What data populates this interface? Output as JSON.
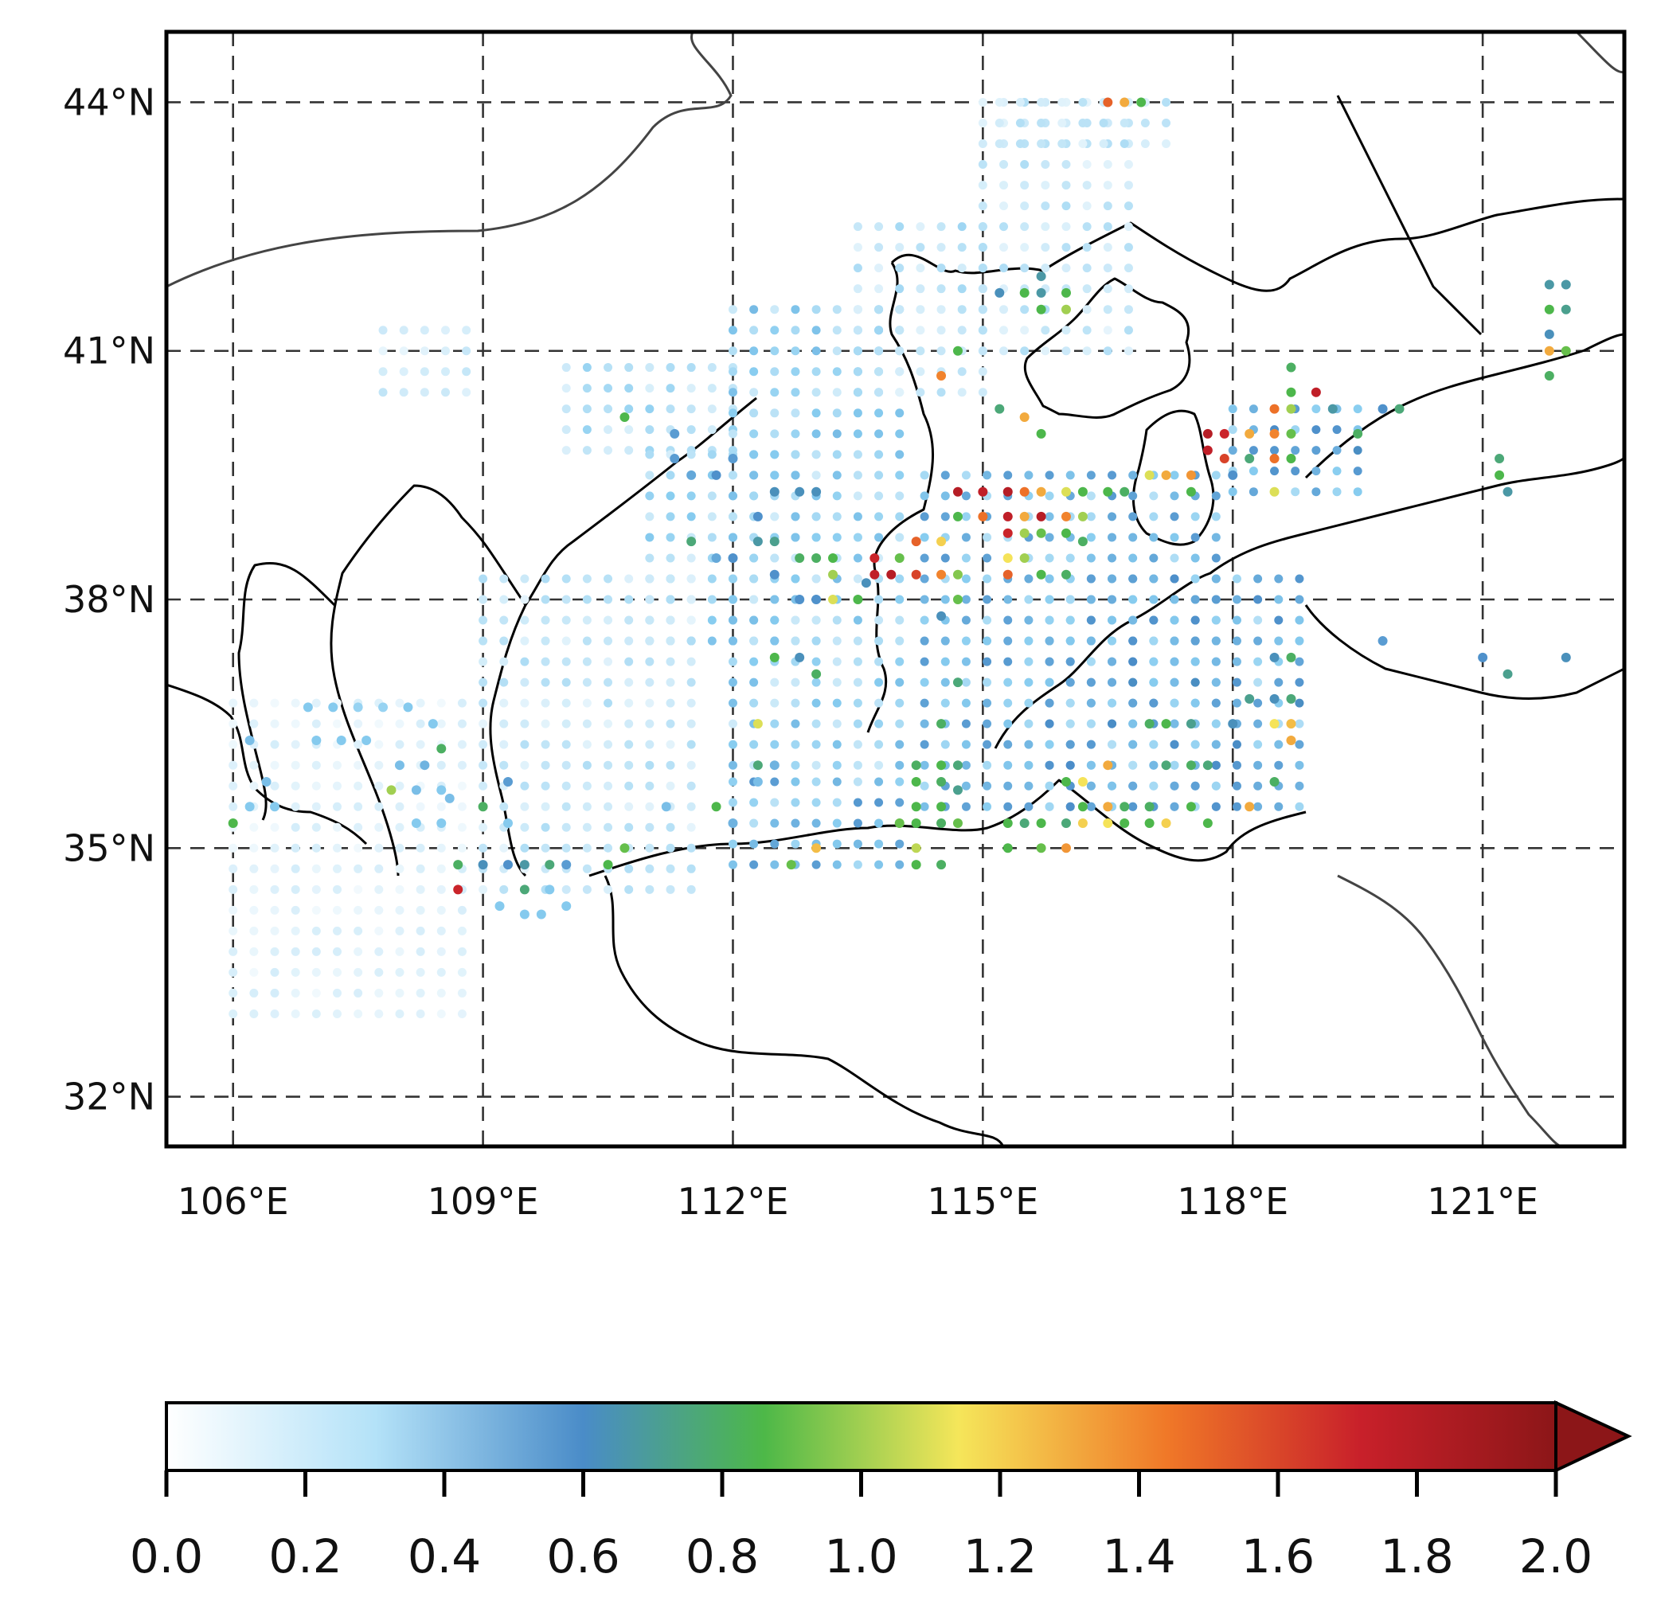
{
  "map": {
    "lon_range": [
      105.2,
      122.7
    ],
    "lat_range": [
      31.4,
      44.85
    ],
    "x_ticks": [
      {
        "value": 106,
        "label": "106°E"
      },
      {
        "value": 109,
        "label": "109°E"
      },
      {
        "value": 112,
        "label": "112°E"
      },
      {
        "value": 115,
        "label": "115°E"
      },
      {
        "value": 118,
        "label": "118°E"
      },
      {
        "value": 121,
        "label": "121°E"
      }
    ],
    "y_ticks": [
      {
        "value": 44,
        "label": "44°N"
      },
      {
        "value": 41,
        "label": "41°N"
      },
      {
        "value": 38,
        "label": "38°N"
      },
      {
        "value": 35,
        "label": "35°N"
      },
      {
        "value": 32,
        "label": "32°N"
      }
    ],
    "gridlines": true,
    "grid_style": "dashed"
  },
  "colorbar": {
    "min": 0.0,
    "max": 2.0,
    "extend": "max",
    "colors": [
      "#ffffff",
      "#88cdf0",
      "#4a8cc8",
      "#4db848",
      "#f5e65a",
      "#f07828",
      "#c8202a",
      "#8c1618"
    ],
    "ticks": [
      "0.0",
      "0.2",
      "0.4",
      "0.6",
      "0.8",
      "1.0",
      "1.2",
      "1.4",
      "1.6",
      "1.8",
      "2.0"
    ]
  },
  "chart_data": {
    "type": "scatter",
    "x_label": "",
    "y_label": "",
    "note_units": "",
    "grid_step_deg": 0.25,
    "points": [
      [
        106.9,
        36.7,
        0.3
      ],
      [
        107.2,
        36.7,
        0.3
      ],
      [
        107.5,
        36.7,
        0.25
      ],
      [
        107.8,
        36.7,
        0.25
      ],
      [
        108.1,
        36.7,
        0.3
      ],
      [
        108.4,
        36.5,
        0.3
      ],
      [
        106.2,
        36.3,
        0.35
      ],
      [
        106.4,
        35.8,
        0.35
      ],
      [
        106.2,
        35.5,
        0.3
      ],
      [
        106.5,
        35.5,
        0.3
      ],
      [
        106.0,
        35.3,
        0.85
      ],
      [
        107.0,
        36.3,
        0.3
      ],
      [
        107.3,
        36.3,
        0.3
      ],
      [
        107.6,
        36.3,
        0.3
      ],
      [
        108.0,
        36.0,
        0.35
      ],
      [
        108.3,
        36.0,
        0.4
      ],
      [
        108.5,
        36.2,
        0.8
      ],
      [
        107.9,
        35.7,
        1.0
      ],
      [
        108.2,
        35.7,
        0.35
      ],
      [
        108.5,
        35.7,
        0.3
      ],
      [
        108.2,
        35.3,
        0.3
      ],
      [
        108.5,
        35.3,
        0.3
      ],
      [
        108.7,
        34.8,
        0.8
      ],
      [
        108.7,
        34.5,
        1.7
      ],
      [
        109.0,
        34.8,
        0.6
      ],
      [
        109.3,
        34.8,
        0.55
      ],
      [
        109.5,
        34.8,
        0.65
      ],
      [
        109.8,
        34.8,
        0.75
      ],
      [
        110.0,
        34.8,
        0.5
      ],
      [
        110.5,
        34.8,
        0.85
      ],
      [
        109.5,
        34.5,
        0.75
      ],
      [
        109.8,
        34.5,
        0.3
      ],
      [
        109.2,
        34.3,
        0.3
      ],
      [
        109.5,
        34.2,
        0.3
      ],
      [
        109.7,
        34.2,
        0.3
      ],
      [
        110.0,
        34.3,
        0.3
      ],
      [
        110.7,
        35.0,
        0.9
      ],
      [
        108.6,
        35.6,
        0.35
      ],
      [
        109.0,
        35.5,
        0.8
      ],
      [
        109.3,
        35.3,
        0.3
      ],
      [
        109.3,
        35.8,
        0.5
      ],
      [
        110.7,
        40.2,
        0.85
      ],
      [
        111.3,
        40.0,
        0.5
      ],
      [
        111.3,
        39.7,
        0.5
      ],
      [
        111.5,
        39.5,
        0.45
      ],
      [
        111.8,
        39.5,
        0.55
      ],
      [
        112.0,
        39.7,
        0.5
      ],
      [
        111.5,
        38.7,
        0.75
      ],
      [
        111.8,
        38.5,
        0.45
      ],
      [
        112.0,
        38.5,
        0.55
      ],
      [
        112.3,
        39.0,
        0.55
      ],
      [
        112.5,
        39.3,
        0.6
      ],
      [
        112.8,
        39.3,
        0.6
      ],
      [
        113.0,
        39.3,
        0.6
      ],
      [
        112.3,
        38.7,
        0.65
      ],
      [
        112.5,
        38.7,
        0.7
      ],
      [
        112.8,
        38.5,
        0.8
      ],
      [
        113.0,
        38.5,
        0.8
      ],
      [
        113.2,
        38.3,
        1.0
      ],
      [
        113.2,
        38.5,
        0.85
      ],
      [
        112.5,
        38.3,
        0.55
      ],
      [
        112.8,
        38.0,
        0.55
      ],
      [
        113.0,
        38.0,
        0.55
      ],
      [
        113.2,
        38.0,
        1.1
      ],
      [
        113.5,
        38.0,
        0.85
      ],
      [
        112.5,
        37.3,
        0.85
      ],
      [
        112.8,
        37.3,
        0.6
      ],
      [
        113.0,
        37.1,
        0.8
      ],
      [
        112.3,
        36.5,
        1.1
      ],
      [
        112.3,
        36.0,
        0.75
      ],
      [
        112.5,
        36.0,
        0.4
      ],
      [
        111.8,
        35.5,
        0.85
      ],
      [
        111.2,
        35.5,
        0.35
      ],
      [
        112.3,
        35.8,
        0.35
      ],
      [
        112.0,
        35.3,
        0.4
      ],
      [
        113.7,
        38.5,
        1.7
      ],
      [
        113.7,
        38.3,
        1.75
      ],
      [
        113.9,
        38.3,
        1.8
      ],
      [
        113.6,
        38.2,
        0.6
      ],
      [
        114.0,
        38.5,
        0.9
      ],
      [
        114.2,
        38.7,
        1.5
      ],
      [
        114.2,
        38.3,
        1.6
      ],
      [
        114.5,
        38.7,
        1.2
      ],
      [
        114.5,
        38.3,
        1.4
      ],
      [
        114.7,
        38.3,
        0.95
      ],
      [
        114.7,
        38.0,
        0.9
      ],
      [
        114.5,
        37.8,
        0.6
      ],
      [
        114.7,
        39.3,
        1.8
      ],
      [
        115.0,
        39.3,
        1.75
      ],
      [
        115.3,
        39.3,
        1.8
      ],
      [
        115.5,
        39.3,
        1.45
      ],
      [
        115.7,
        39.3,
        1.3
      ],
      [
        116.0,
        39.3,
        1.1
      ],
      [
        116.2,
        39.3,
        0.85
      ],
      [
        116.5,
        39.3,
        0.85
      ],
      [
        116.7,
        39.3,
        0.8
      ],
      [
        114.7,
        39.0,
        0.85
      ],
      [
        115.0,
        39.0,
        1.45
      ],
      [
        115.3,
        39.0,
        1.75
      ],
      [
        115.5,
        39.0,
        1.3
      ],
      [
        115.7,
        39.0,
        1.8
      ],
      [
        116.0,
        39.0,
        1.4
      ],
      [
        116.2,
        39.0,
        1.0
      ],
      [
        115.3,
        38.8,
        1.7
      ],
      [
        115.5,
        38.8,
        1.0
      ],
      [
        115.7,
        38.8,
        0.9
      ],
      [
        116.0,
        38.8,
        0.85
      ],
      [
        116.2,
        38.7,
        0.8
      ],
      [
        115.3,
        38.5,
        1.15
      ],
      [
        115.5,
        38.5,
        1.0
      ],
      [
        115.3,
        38.3,
        1.5
      ],
      [
        115.7,
        38.3,
        0.85
      ],
      [
        116.0,
        38.3,
        0.8
      ],
      [
        114.7,
        37.0,
        0.75
      ],
      [
        114.5,
        36.5,
        0.8
      ],
      [
        114.2,
        36.0,
        0.8
      ],
      [
        114.5,
        36.0,
        0.85
      ],
      [
        114.7,
        36.0,
        0.75
      ],
      [
        114.2,
        35.8,
        0.85
      ],
      [
        114.5,
        35.8,
        0.8
      ],
      [
        114.7,
        35.7,
        0.7
      ],
      [
        114.2,
        35.5,
        0.85
      ],
      [
        114.5,
        35.5,
        0.85
      ],
      [
        114.0,
        35.3,
        0.9
      ],
      [
        114.2,
        35.3,
        0.85
      ],
      [
        114.5,
        35.3,
        0.8
      ],
      [
        114.7,
        35.3,
        0.9
      ],
      [
        114.2,
        35.0,
        1.05
      ],
      [
        113.0,
        35.0,
        1.25
      ],
      [
        114.2,
        34.8,
        0.85
      ],
      [
        114.5,
        34.8,
        0.8
      ],
      [
        112.7,
        34.8,
        0.9
      ],
      [
        115.3,
        35.0,
        0.85
      ],
      [
        115.7,
        35.0,
        0.9
      ],
      [
        116.0,
        35.0,
        1.35
      ],
      [
        115.3,
        35.3,
        0.85
      ],
      [
        115.5,
        35.3,
        0.75
      ],
      [
        115.7,
        35.3,
        0.85
      ],
      [
        116.0,
        35.3,
        0.75
      ],
      [
        116.2,
        35.3,
        1.2
      ],
      [
        116.5,
        35.3,
        1.15
      ],
      [
        116.7,
        35.3,
        0.85
      ],
      [
        117.0,
        35.3,
        0.85
      ],
      [
        117.2,
        35.3,
        1.2
      ],
      [
        117.7,
        35.3,
        0.85
      ],
      [
        116.2,
        35.5,
        0.85
      ],
      [
        116.5,
        35.5,
        1.3
      ],
      [
        116.7,
        35.5,
        0.8
      ],
      [
        117.0,
        35.5,
        0.8
      ],
      [
        117.5,
        35.5,
        0.85
      ],
      [
        118.2,
        35.5,
        1.3
      ],
      [
        116.2,
        35.8,
        1.15
      ],
      [
        116.0,
        35.8,
        0.85
      ],
      [
        116.5,
        36.0,
        1.3
      ],
      [
        117.2,
        36.0,
        0.75
      ],
      [
        117.5,
        36.0,
        0.8
      ],
      [
        117.7,
        36.0,
        0.75
      ],
      [
        118.5,
        35.8,
        0.8
      ],
      [
        117.0,
        36.5,
        0.8
      ],
      [
        117.2,
        36.5,
        0.85
      ],
      [
        117.5,
        36.5,
        0.7
      ],
      [
        118.0,
        36.5,
        0.6
      ],
      [
        118.5,
        36.5,
        1.15
      ],
      [
        118.7,
        36.3,
        1.3
      ],
      [
        118.7,
        36.5,
        1.25
      ],
      [
        118.2,
        36.8,
        0.7
      ],
      [
        118.5,
        36.8,
        0.6
      ],
      [
        118.7,
        36.8,
        0.75
      ],
      [
        118.7,
        37.3,
        0.8
      ],
      [
        118.5,
        37.3,
        0.6
      ],
      [
        114.5,
        40.7,
        1.4
      ],
      [
        114.7,
        41.0,
        0.85
      ],
      [
        115.2,
        40.3,
        0.75
      ],
      [
        115.5,
        40.2,
        1.3
      ],
      [
        115.7,
        40.0,
        0.85
      ],
      [
        115.2,
        41.7,
        0.6
      ],
      [
        115.5,
        41.7,
        0.85
      ],
      [
        115.7,
        41.7,
        0.65
      ],
      [
        115.7,
        41.5,
        0.85
      ],
      [
        116.0,
        41.7,
        0.85
      ],
      [
        116.0,
        41.5,
        1.0
      ],
      [
        115.7,
        41.9,
        0.65
      ],
      [
        116.5,
        44.0,
        1.5
      ],
      [
        116.7,
        44.0,
        1.3
      ],
      [
        116.9,
        44.0,
        0.85
      ],
      [
        117.2,
        39.5,
        1.3
      ],
      [
        117.5,
        39.5,
        1.35
      ],
      [
        117.0,
        39.5,
        1.1
      ],
      [
        117.5,
        39.3,
        0.85
      ],
      [
        117.7,
        39.8,
        1.75
      ],
      [
        117.9,
        39.7,
        1.6
      ],
      [
        117.7,
        40.0,
        1.8
      ],
      [
        117.9,
        40.0,
        1.7
      ],
      [
        118.2,
        40.0,
        1.3
      ],
      [
        118.5,
        40.0,
        1.4
      ],
      [
        118.7,
        40.0,
        0.9
      ],
      [
        118.2,
        39.7,
        0.75
      ],
      [
        118.5,
        39.7,
        1.45
      ],
      [
        118.7,
        39.7,
        0.85
      ],
      [
        118.0,
        39.5,
        0.55
      ],
      [
        118.5,
        40.3,
        1.45
      ],
      [
        118.7,
        40.3,
        1.0
      ],
      [
        118.7,
        40.5,
        0.85
      ],
      [
        119.0,
        40.5,
        1.75
      ],
      [
        118.7,
        40.8,
        0.8
      ],
      [
        118.5,
        39.3,
        1.1
      ],
      [
        119.2,
        40.3,
        0.65
      ],
      [
        119.5,
        40.0,
        0.8
      ],
      [
        119.8,
        40.3,
        0.55
      ],
      [
        120.0,
        40.3,
        0.75
      ],
      [
        121.8,
        41.5,
        0.85
      ],
      [
        122.0,
        41.5,
        0.7
      ],
      [
        121.8,
        41.2,
        0.6
      ],
      [
        122.0,
        41.0,
        0.9
      ],
      [
        121.8,
        41.0,
        1.3
      ],
      [
        121.8,
        40.7,
        0.8
      ],
      [
        122.0,
        41.8,
        0.65
      ],
      [
        121.8,
        41.8,
        0.65
      ],
      [
        121.2,
        39.7,
        0.75
      ],
      [
        121.2,
        39.5,
        0.85
      ],
      [
        121.3,
        39.3,
        0.65
      ],
      [
        119.8,
        37.5,
        0.5
      ],
      [
        121.0,
        37.3,
        0.55
      ],
      [
        121.3,
        37.1,
        0.7
      ],
      [
        122.0,
        37.3,
        0.6
      ]
    ]
  }
}
